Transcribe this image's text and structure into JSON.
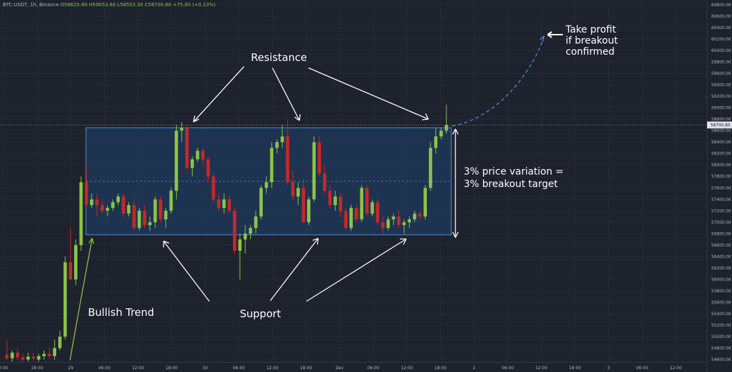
{
  "header": {
    "symbol": "BTC.USDT, 1h, Binance",
    "open": "O58625.80",
    "high": "H59053.60",
    "low": "L58553.30",
    "close": "C58700.80",
    "change": "+75.00 (+0.13%)"
  },
  "annotations": {
    "resistance": "Resistance",
    "support": "Support",
    "bullish_trend": "Bullish Trend",
    "variation_line1": "3% price variation =",
    "variation_line2": "3% breakout target",
    "take_profit_line1": "Take profit",
    "take_profit_line2": "if breakout",
    "take_profit_line3": "confirmed"
  },
  "last_price_label": "58700.80",
  "colors": {
    "background": "#1e222d",
    "up": "#8bc34a",
    "down": "#c62828",
    "range_box": "#1f3a5c",
    "range_border": "#4a90d9",
    "projection": "#4a90d9"
  },
  "chart_data": {
    "type": "candlestick",
    "title": "",
    "xlabel": "",
    "ylabel": "",
    "ylim": [
      54400,
      60900
    ],
    "y_ticks": [
      54600,
      54800,
      55000,
      55200,
      55400,
      55600,
      55800,
      56000,
      56200,
      56400,
      56600,
      56800,
      57000,
      57200,
      57400,
      57600,
      57800,
      58000,
      58200,
      58400,
      58600,
      58800,
      59000,
      59200,
      59400,
      59600,
      59800,
      60000,
      60200,
      60400,
      60600,
      60800
    ],
    "x_ticks": [
      "2:00",
      "18:00",
      "29",
      "06:00",
      "12:00",
      "18:00",
      "30",
      "06:00",
      "12:00",
      "18:00",
      "Dec",
      "06:00",
      "12:00",
      "18:00",
      "2",
      "06:00",
      "12:00",
      "18:00",
      "3",
      "06:00",
      "12:00"
    ],
    "candles": [
      [
        54680,
        54950,
        54590,
        54620
      ],
      [
        54620,
        54760,
        54560,
        54720
      ],
      [
        54720,
        54800,
        54590,
        54640
      ],
      [
        54640,
        54700,
        54560,
        54600
      ],
      [
        54600,
        54720,
        54560,
        54650
      ],
      [
        54650,
        54720,
        54580,
        54620
      ],
      [
        54600,
        54700,
        54560,
        54660
      ],
      [
        54660,
        54760,
        54600,
        54700
      ],
      [
        54700,
        54800,
        54620,
        54660
      ],
      [
        54660,
        54950,
        54600,
        54800
      ],
      [
        54800,
        55100,
        54760,
        55000
      ],
      [
        55000,
        56400,
        54950,
        56300
      ],
      [
        56300,
        56900,
        56000,
        56000
      ],
      [
        56000,
        56700,
        55900,
        56600
      ],
      [
        56600,
        57800,
        56500,
        57700
      ],
      [
        57700,
        58000,
        57300,
        57300
      ],
      [
        57300,
        57500,
        57250,
        57400
      ],
      [
        57400,
        57500,
        57100,
        57300
      ],
      [
        57300,
        57400,
        57150,
        57200
      ],
      [
        57200,
        57300,
        57100,
        57250
      ],
      [
        57250,
        57400,
        57200,
        57350
      ],
      [
        57350,
        57500,
        57300,
        57450
      ],
      [
        57450,
        57500,
        57100,
        57150
      ],
      [
        57150,
        57350,
        57100,
        57300
      ],
      [
        57300,
        57400,
        56850,
        56900
      ],
      [
        56900,
        57250,
        56850,
        57200
      ],
      [
        57200,
        57300,
        56900,
        56950
      ],
      [
        56950,
        57100,
        56850,
        57000
      ],
      [
        57000,
        57450,
        56900,
        57400
      ],
      [
        57400,
        57450,
        57000,
        57050
      ],
      [
        57050,
        57250,
        56900,
        57200
      ],
      [
        57200,
        57600,
        57150,
        57550
      ],
      [
        57550,
        58700,
        57400,
        58600
      ],
      [
        58600,
        58750,
        58400,
        58650
      ],
      [
        58650,
        58700,
        57900,
        57950
      ],
      [
        57950,
        58150,
        57800,
        58100
      ],
      [
        58100,
        58300,
        58050,
        58250
      ],
      [
        58250,
        58300,
        58000,
        58100
      ],
      [
        58100,
        58150,
        57700,
        57800
      ],
      [
        57800,
        57850,
        57350,
        57400
      ],
      [
        57400,
        57500,
        57200,
        57250
      ],
      [
        57250,
        57500,
        57150,
        57400
      ],
      [
        57400,
        57450,
        57150,
        57200
      ],
      [
        57200,
        57250,
        56450,
        56500
      ],
      [
        56500,
        56800,
        56000,
        56700
      ],
      [
        56700,
        56950,
        56450,
        56800
      ],
      [
        56800,
        56950,
        56700,
        56900
      ],
      [
        56900,
        57200,
        56800,
        57100
      ],
      [
        57100,
        57650,
        57050,
        57600
      ],
      [
        57600,
        57800,
        57500,
        57700
      ],
      [
        57700,
        58400,
        57600,
        58300
      ],
      [
        58300,
        58450,
        58200,
        58400
      ],
      [
        58400,
        58700,
        58300,
        58500
      ],
      [
        58500,
        58800,
        57650,
        57700
      ],
      [
        57700,
        57900,
        57400,
        57450
      ],
      [
        57450,
        57700,
        57300,
        57600
      ],
      [
        57600,
        57750,
        57000,
        57000
      ],
      [
        57000,
        57450,
        56950,
        57400
      ],
      [
        57400,
        58500,
        57350,
        58400
      ],
      [
        58400,
        58500,
        57800,
        57850
      ],
      [
        57850,
        58000,
        57500,
        57550
      ],
      [
        57550,
        57650,
        57250,
        57300
      ],
      [
        57300,
        57550,
        57200,
        57450
      ],
      [
        57450,
        57500,
        57100,
        57200
      ],
      [
        57200,
        57250,
        56850,
        56900
      ],
      [
        56900,
        57300,
        56850,
        57250
      ],
      [
        57250,
        57300,
        57000,
        57050
      ],
      [
        57050,
        57650,
        57000,
        57600
      ],
      [
        57600,
        57650,
        57100,
        57150
      ],
      [
        57150,
        57400,
        57100,
        57350
      ],
      [
        57350,
        57400,
        56950,
        57000
      ],
      [
        57000,
        57100,
        56800,
        56900
      ],
      [
        56900,
        57100,
        56850,
        57050
      ],
      [
        57050,
        57150,
        56950,
        57100
      ],
      [
        57100,
        57200,
        56900,
        56950
      ],
      [
        56950,
        57050,
        56800,
        57000
      ],
      [
        57000,
        57100,
        56900,
        57050
      ],
      [
        57050,
        57200,
        57000,
        57150
      ],
      [
        57150,
        57200,
        57050,
        57100
      ],
      [
        57100,
        57650,
        57050,
        57600
      ],
      [
        57600,
        58400,
        57550,
        58300
      ],
      [
        58300,
        58650,
        58200,
        58500
      ],
      [
        58500,
        58650,
        58450,
        58600
      ],
      [
        58600,
        59050,
        58550,
        58700
      ]
    ]
  }
}
